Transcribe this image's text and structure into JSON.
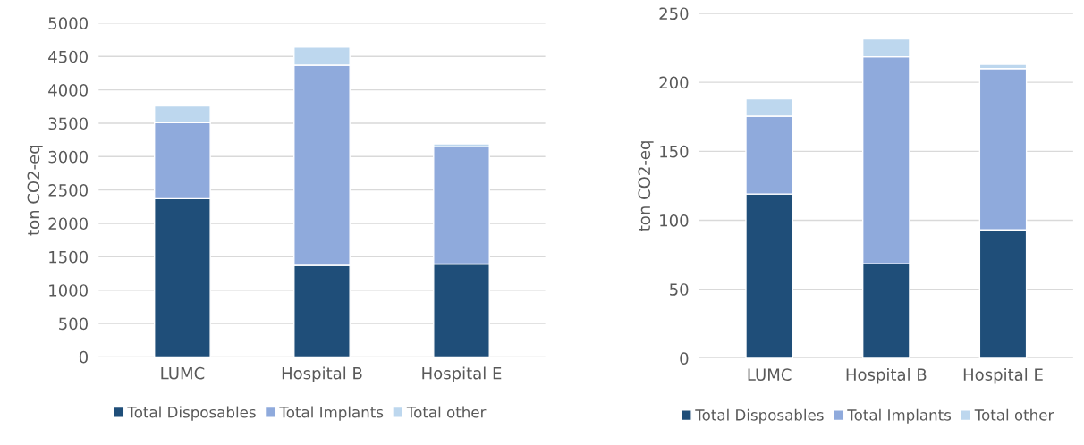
{
  "chart_data": [
    {
      "type": "bar",
      "stacked": true,
      "ylabel": "ton CO2-eq",
      "categories": [
        "LUMC",
        "Hospital B",
        "Hospital E"
      ],
      "series": [
        {
          "name": "Total Disposables",
          "color": "#1f4e79",
          "values": [
            2370,
            1370,
            1390
          ]
        },
        {
          "name": "Total Implants",
          "color": "#8faadc",
          "values": [
            1140,
            3000,
            1760
          ]
        },
        {
          "name": "Total other",
          "color": "#bdd7ee",
          "values": [
            250,
            270,
            40
          ]
        }
      ],
      "ylim": [
        0,
        5000
      ],
      "yticks": [
        0,
        500,
        1000,
        1500,
        2000,
        2500,
        3000,
        3500,
        4000,
        4500,
        5000
      ],
      "grid": "y",
      "legend": "bottom"
    },
    {
      "type": "bar",
      "stacked": true,
      "ylabel": "ton CO2-eq",
      "categories": [
        "LUMC",
        "Hospital B",
        "Hospital E"
      ],
      "series": [
        {
          "name": "Total Disposables",
          "color": "#1f4e79",
          "values": [
            119,
            68.5,
            93
          ]
        },
        {
          "name": "Total Implants",
          "color": "#8faadc",
          "values": [
            56.5,
            150,
            117
          ]
        },
        {
          "name": "Total other",
          "color": "#bdd7ee",
          "values": [
            12.5,
            13,
            3
          ]
        }
      ],
      "ylim": [
        0,
        250
      ],
      "yticks": [
        0,
        50,
        100,
        150,
        200,
        250
      ],
      "grid": "y",
      "legend": "bottom"
    }
  ]
}
